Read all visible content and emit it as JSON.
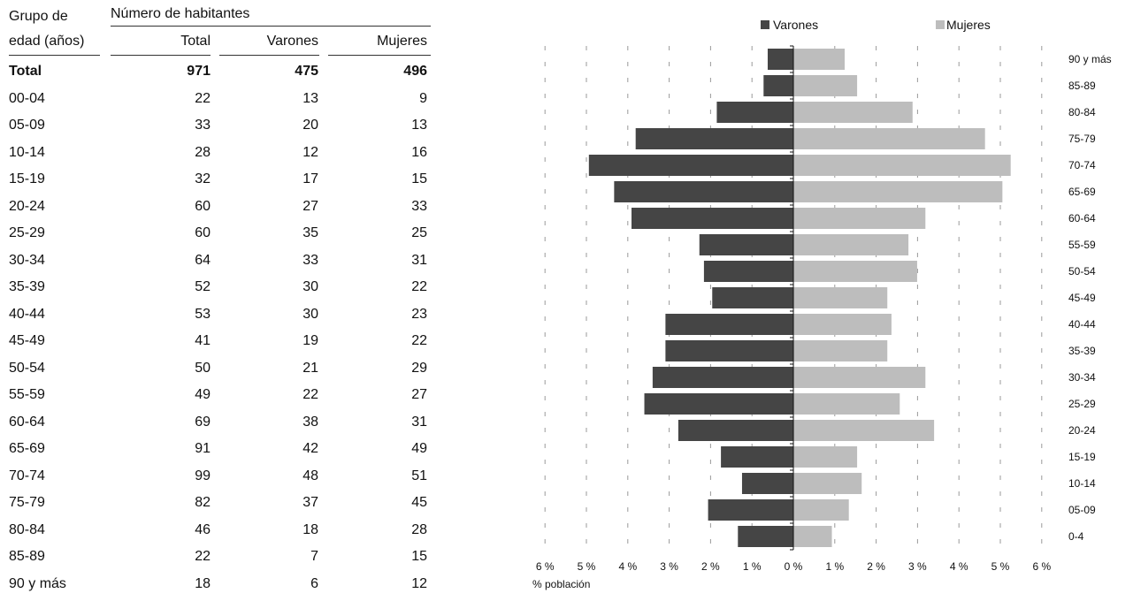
{
  "table": {
    "group_header_line1": "Grupo de",
    "group_header_line2": "edad (años)",
    "population_header": "Número de habitantes",
    "col_total": "Total",
    "col_males": "Varones",
    "col_females": "Mujeres",
    "total_row": {
      "label": "Total",
      "total": "971",
      "males": "475",
      "females": "496"
    },
    "rows": [
      {
        "label": "00-04",
        "total": "22",
        "males": "13",
        "females": "9"
      },
      {
        "label": "05-09",
        "total": "33",
        "males": "20",
        "females": "13"
      },
      {
        "label": "10-14",
        "total": "28",
        "males": "12",
        "females": "16"
      },
      {
        "label": "15-19",
        "total": "32",
        "males": "17",
        "females": "15"
      },
      {
        "label": "20-24",
        "total": "60",
        "males": "27",
        "females": "33"
      },
      {
        "label": "25-29",
        "total": "60",
        "males": "35",
        "females": "25"
      },
      {
        "label": "30-34",
        "total": "64",
        "males": "33",
        "females": "31"
      },
      {
        "label": "35-39",
        "total": "52",
        "males": "30",
        "females": "22"
      },
      {
        "label": "40-44",
        "total": "53",
        "males": "30",
        "females": "23"
      },
      {
        "label": "45-49",
        "total": "41",
        "males": "19",
        "females": "22"
      },
      {
        "label": "50-54",
        "total": "50",
        "males": "21",
        "females": "29"
      },
      {
        "label": "55-59",
        "total": "49",
        "males": "22",
        "females": "27"
      },
      {
        "label": "60-64",
        "total": "69",
        "males": "38",
        "females": "31"
      },
      {
        "label": "65-69",
        "total": "91",
        "males": "42",
        "females": "49"
      },
      {
        "label": "70-74",
        "total": "99",
        "males": "48",
        "females": "51"
      },
      {
        "label": "75-79",
        "total": "82",
        "males": "37",
        "females": "45"
      },
      {
        "label": "80-84",
        "total": "46",
        "males": "18",
        "females": "28"
      },
      {
        "label": "85-89",
        "total": "22",
        "males": "7",
        "females": "15"
      },
      {
        "label": "90 y más",
        "total": "18",
        "males": "6",
        "females": "12"
      }
    ]
  },
  "chart_data": {
    "type": "bar",
    "orientation": "horizontal-population-pyramid",
    "xlabel": "% población",
    "xlim": [
      -6,
      6
    ],
    "x_ticks": [
      "6 %",
      "5 %",
      "4 %",
      "3 %",
      "2 %",
      "1 %",
      "0 %",
      "1 %",
      "2 %",
      "3 %",
      "4 %",
      "5 %",
      "6 %"
    ],
    "grid": "vertical-dashed",
    "legend_position": "top",
    "categories": [
      "0-4",
      "05-09",
      "10-14",
      "15-19",
      "20-24",
      "25-29",
      "30-34",
      "35-39",
      "40-44",
      "45-49",
      "50-54",
      "55-59",
      "60-64",
      "65-69",
      "70-74",
      "75-79",
      "80-84",
      "85-89",
      "90 y más"
    ],
    "series": [
      {
        "name": "Varones",
        "color": "#454545",
        "values": [
          1.34,
          2.06,
          1.24,
          1.75,
          2.78,
          3.6,
          3.4,
          3.09,
          3.09,
          1.96,
          2.16,
          2.27,
          3.91,
          4.33,
          4.94,
          3.81,
          1.85,
          0.72,
          0.62
        ]
      },
      {
        "name": "Mujeres",
        "color": "#bdbdbd",
        "values": [
          0.93,
          1.34,
          1.65,
          1.54,
          3.4,
          2.57,
          3.19,
          2.27,
          2.37,
          2.27,
          2.99,
          2.78,
          3.19,
          5.05,
          5.25,
          4.63,
          2.88,
          1.54,
          1.24
        ]
      }
    ]
  }
}
